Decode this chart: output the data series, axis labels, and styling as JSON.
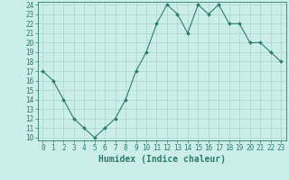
{
  "x": [
    0,
    1,
    2,
    3,
    4,
    5,
    6,
    7,
    8,
    9,
    10,
    11,
    12,
    13,
    14,
    15,
    16,
    17,
    18,
    19,
    20,
    21,
    22,
    23
  ],
  "y": [
    17,
    16,
    14,
    12,
    11,
    10,
    11,
    12,
    14,
    17,
    19,
    22,
    24,
    23,
    21,
    24,
    23,
    24,
    22,
    22,
    20,
    20,
    19,
    18
  ],
  "line_color": "#2d7b6f",
  "marker_color": "#2d7b6f",
  "bg_color": "#cceee8",
  "grid_color": "#aad4ce",
  "xlabel": "Humidex (Indice chaleur)",
  "ylim_min": 10,
  "ylim_max": 24,
  "xlim_min": 0,
  "xlim_max": 23,
  "yticks": [
    10,
    11,
    12,
    13,
    14,
    15,
    16,
    17,
    18,
    19,
    20,
    21,
    22,
    23,
    24
  ],
  "xticks": [
    0,
    1,
    2,
    3,
    4,
    5,
    6,
    7,
    8,
    9,
    10,
    11,
    12,
    13,
    14,
    15,
    16,
    17,
    18,
    19,
    20,
    21,
    22,
    23
  ],
  "tick_label_fontsize": 5.5,
  "xlabel_fontsize": 7.0,
  "axis_color": "#2d7b6f",
  "linewidth": 0.8,
  "markersize": 2.0
}
